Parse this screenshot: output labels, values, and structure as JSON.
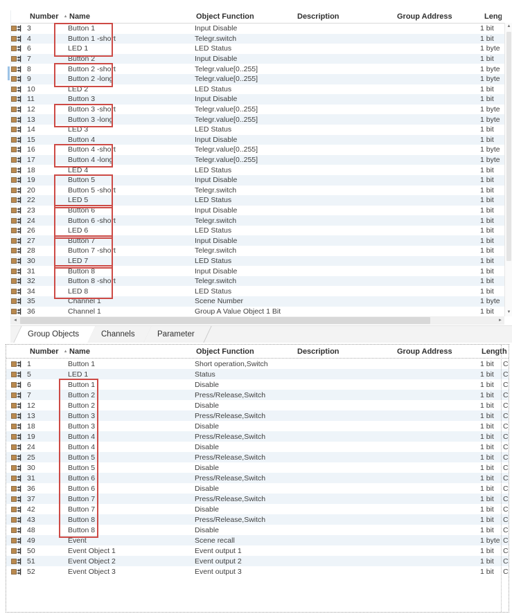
{
  "colors": {
    "highlight_red": "#cd4a45",
    "row_alt": "#eef4f9",
    "icon_square": "#b9894e",
    "accent_blue": "#9dc3e6"
  },
  "icons": {
    "sort_ascending": "▲",
    "scroll_up": "▲",
    "scroll_down": "▼",
    "scroll_left": "◄",
    "scroll_right": "►",
    "row_icon": "group-object-icon"
  },
  "tabs": {
    "items": [
      {
        "label": "Group Objects",
        "active": true
      },
      {
        "label": "Channels",
        "active": false
      },
      {
        "label": "Parameter",
        "active": false
      }
    ]
  },
  "top_table": {
    "columns": [
      "Number",
      "Name",
      "Object Function",
      "Description",
      "Group Address",
      "Lengt"
    ],
    "sorted_by": "Number",
    "rows": [
      {
        "number": "3",
        "name": "Button 1",
        "function": "Input Disable",
        "description": "",
        "group_address": "",
        "length": "1 bit"
      },
      {
        "number": "4",
        "name": "Button 1 -short",
        "function": "Telegr.switch",
        "description": "",
        "group_address": "",
        "length": "1 bit"
      },
      {
        "number": "6",
        "name": "LED 1",
        "function": "LED Status",
        "description": "",
        "group_address": "",
        "length": "1 byte"
      },
      {
        "number": "7",
        "name": "Button 2",
        "function": "Input Disable",
        "description": "",
        "group_address": "",
        "length": "1 bit"
      },
      {
        "number": "8",
        "name": "Button 2 -short",
        "function": "Telegr.value[0..255]",
        "description": "",
        "group_address": "",
        "length": "1 byte"
      },
      {
        "number": "9",
        "name": "Button 2 -long",
        "function": "Telegr.value[0..255]",
        "description": "",
        "group_address": "",
        "length": "1 byte"
      },
      {
        "number": "10",
        "name": "LED 2",
        "function": "LED Status",
        "description": "",
        "group_address": "",
        "length": "1 bit"
      },
      {
        "number": "11",
        "name": "Button 3",
        "function": "Input Disable",
        "description": "",
        "group_address": "",
        "length": "1 bit"
      },
      {
        "number": "12",
        "name": "Button 3 -short",
        "function": "Telegr.value[0..255]",
        "description": "",
        "group_address": "",
        "length": "1 byte"
      },
      {
        "number": "13",
        "name": "Button 3 -long",
        "function": "Telegr.value[0..255]",
        "description": "",
        "group_address": "",
        "length": "1 byte"
      },
      {
        "number": "14",
        "name": "LED 3",
        "function": "LED Status",
        "description": "",
        "group_address": "",
        "length": "1 bit"
      },
      {
        "number": "15",
        "name": "Button 4",
        "function": "Input Disable",
        "description": "",
        "group_address": "",
        "length": "1 bit"
      },
      {
        "number": "16",
        "name": "Button 4 -short",
        "function": "Telegr.value[0..255]",
        "description": "",
        "group_address": "",
        "length": "1 byte"
      },
      {
        "number": "17",
        "name": "Button 4 -long",
        "function": "Telegr.value[0..255]",
        "description": "",
        "group_address": "",
        "length": "1 byte"
      },
      {
        "number": "18",
        "name": "LED 4",
        "function": "LED Status",
        "description": "",
        "group_address": "",
        "length": "1 bit"
      },
      {
        "number": "19",
        "name": "Button 5",
        "function": "Input Disable",
        "description": "",
        "group_address": "",
        "length": "1 bit"
      },
      {
        "number": "20",
        "name": "Button 5 -short",
        "function": "Telegr.switch",
        "description": "",
        "group_address": "",
        "length": "1 bit"
      },
      {
        "number": "22",
        "name": "LED 5",
        "function": "LED Status",
        "description": "",
        "group_address": "",
        "length": "1 bit"
      },
      {
        "number": "23",
        "name": "Button 6",
        "function": "Input Disable",
        "description": "",
        "group_address": "",
        "length": "1 bit"
      },
      {
        "number": "24",
        "name": "Button 6 -short",
        "function": "Telegr.switch",
        "description": "",
        "group_address": "",
        "length": "1 bit"
      },
      {
        "number": "26",
        "name": "LED 6",
        "function": "LED Status",
        "description": "",
        "group_address": "",
        "length": "1 bit"
      },
      {
        "number": "27",
        "name": "Button 7",
        "function": "Input Disable",
        "description": "",
        "group_address": "",
        "length": "1 bit"
      },
      {
        "number": "28",
        "name": "Button 7 -short",
        "function": "Telegr.switch",
        "description": "",
        "group_address": "",
        "length": "1 bit"
      },
      {
        "number": "30",
        "name": "LED 7",
        "function": "LED Status",
        "description": "",
        "group_address": "",
        "length": "1 bit"
      },
      {
        "number": "31",
        "name": "Button 8",
        "function": "Input Disable",
        "description": "",
        "group_address": "",
        "length": "1 bit"
      },
      {
        "number": "32",
        "name": "Button 8 -short",
        "function": "Telegr.switch",
        "description": "",
        "group_address": "",
        "length": "1 bit"
      },
      {
        "number": "34",
        "name": "LED 8",
        "function": "LED Status",
        "description": "",
        "group_address": "",
        "length": "1 bit"
      },
      {
        "number": "35",
        "name": "Channel 1",
        "function": "Scene Number",
        "description": "",
        "group_address": "",
        "length": "1 byte"
      },
      {
        "number": "36",
        "name": "Channel 1",
        "function": "Group A Value Object 1 Bit",
        "description": "",
        "group_address": "",
        "length": "1 bit"
      }
    ],
    "highlights": [
      {
        "start": 0,
        "count": 3
      },
      {
        "start": 4,
        "count": 2
      },
      {
        "start": 8,
        "count": 2
      },
      {
        "start": 12,
        "count": 2
      },
      {
        "start": 15,
        "count": 3
      },
      {
        "start": 18,
        "count": 3
      },
      {
        "start": 21,
        "count": 3
      },
      {
        "start": 24,
        "count": 3
      }
    ]
  },
  "bottom_table": {
    "columns": [
      "Number",
      "Name",
      "Object Function",
      "Description",
      "Group Address",
      "Length"
    ],
    "sorted_by": "Number",
    "rows": [
      {
        "number": "1",
        "name": "Button 1",
        "function": "Short operation,Switch",
        "description": "",
        "group_address": "",
        "length": "1 bit",
        "flag": "C"
      },
      {
        "number": "5",
        "name": "LED 1",
        "function": "Status",
        "description": "",
        "group_address": "",
        "length": "1 bit",
        "flag": "C"
      },
      {
        "number": "6",
        "name": "Button 1",
        "function": "Disable",
        "description": "",
        "group_address": "",
        "length": "1 bit",
        "flag": "C"
      },
      {
        "number": "7",
        "name": "Button 2",
        "function": "Press/Release,Switch",
        "description": "",
        "group_address": "",
        "length": "1 bit",
        "flag": "C"
      },
      {
        "number": "12",
        "name": "Button 2",
        "function": "Disable",
        "description": "",
        "group_address": "",
        "length": "1 bit",
        "flag": "C"
      },
      {
        "number": "13",
        "name": "Button 3",
        "function": "Press/Release,Switch",
        "description": "",
        "group_address": "",
        "length": "1 bit",
        "flag": "C"
      },
      {
        "number": "18",
        "name": "Button 3",
        "function": "Disable",
        "description": "",
        "group_address": "",
        "length": "1 bit",
        "flag": "C"
      },
      {
        "number": "19",
        "name": "Button 4",
        "function": "Press/Release,Switch",
        "description": "",
        "group_address": "",
        "length": "1 bit",
        "flag": "C"
      },
      {
        "number": "24",
        "name": "Button 4",
        "function": "Disable",
        "description": "",
        "group_address": "",
        "length": "1 bit",
        "flag": "C"
      },
      {
        "number": "25",
        "name": "Button 5",
        "function": "Press/Release,Switch",
        "description": "",
        "group_address": "",
        "length": "1 bit",
        "flag": "C"
      },
      {
        "number": "30",
        "name": "Button 5",
        "function": "Disable",
        "description": "",
        "group_address": "",
        "length": "1 bit",
        "flag": "C"
      },
      {
        "number": "31",
        "name": "Button 6",
        "function": "Press/Release,Switch",
        "description": "",
        "group_address": "",
        "length": "1 bit",
        "flag": "C"
      },
      {
        "number": "36",
        "name": "Button 6",
        "function": "Disable",
        "description": "",
        "group_address": "",
        "length": "1 bit",
        "flag": "C"
      },
      {
        "number": "37",
        "name": "Button 7",
        "function": "Press/Release,Switch",
        "description": "",
        "group_address": "",
        "length": "1 bit",
        "flag": "C"
      },
      {
        "number": "42",
        "name": "Button 7",
        "function": "Disable",
        "description": "",
        "group_address": "",
        "length": "1 bit",
        "flag": "C"
      },
      {
        "number": "43",
        "name": "Button 8",
        "function": "Press/Release,Switch",
        "description": "",
        "group_address": "",
        "length": "1 bit",
        "flag": "C"
      },
      {
        "number": "48",
        "name": "Button 8",
        "function": "Disable",
        "description": "",
        "group_address": "",
        "length": "1 bit",
        "flag": "C"
      },
      {
        "number": "49",
        "name": "Event",
        "function": "Scene recall",
        "description": "",
        "group_address": "",
        "length": "1 byte",
        "flag": "C"
      },
      {
        "number": "50",
        "name": "Event Object 1",
        "function": "Event output 1",
        "description": "",
        "group_address": "",
        "length": "1 bit",
        "flag": "C"
      },
      {
        "number": "51",
        "name": "Event Object 2",
        "function": "Event output 2",
        "description": "",
        "group_address": "",
        "length": "1 bit",
        "flag": "C"
      },
      {
        "number": "52",
        "name": "Event Object 3",
        "function": "Event output 3",
        "description": "",
        "group_address": "",
        "length": "1 bit",
        "flag": "C"
      }
    ],
    "highlights": [
      {
        "start": 2,
        "count": 15
      }
    ]
  }
}
